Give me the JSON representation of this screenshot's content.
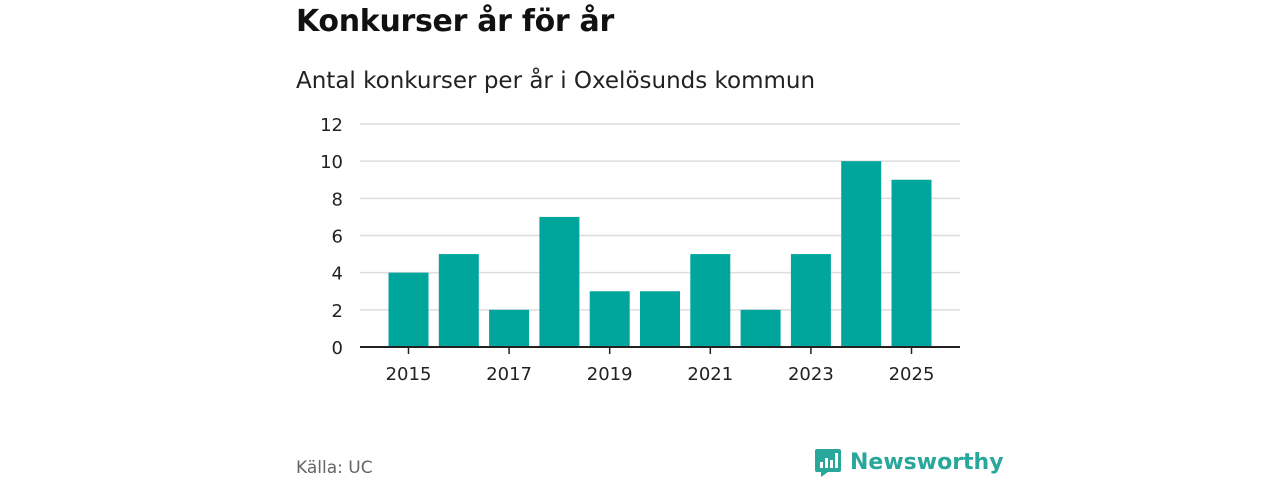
{
  "header": {
    "title": "Konkurser år för år",
    "subtitle": "Antal konkurser per år i Oxelösunds kommun"
  },
  "footer": {
    "source": "Källa: UC",
    "brand": "Newsworthy",
    "brand_icon": "newsworthy-logo-icon"
  },
  "colors": {
    "bar": "#00a69c",
    "brand": "#2aa79b",
    "grid": "#dddddd",
    "axis": "#222222"
  },
  "chart_data": {
    "type": "bar",
    "title": "Konkurser år för år",
    "subtitle": "Antal konkurser per år i Oxelösunds kommun",
    "xlabel": "",
    "ylabel": "",
    "categories": [
      "2015",
      "2016",
      "2017",
      "2018",
      "2019",
      "2020",
      "2021",
      "2022",
      "2023",
      "2024",
      "2025"
    ],
    "values": [
      4,
      5,
      2,
      7,
      3,
      3,
      5,
      2,
      5,
      10,
      9
    ],
    "x_tick_labels": [
      "2015",
      "2017",
      "2019",
      "2021",
      "2023",
      "2025"
    ],
    "y_ticks": [
      0,
      2,
      4,
      6,
      8,
      10,
      12
    ],
    "ylim": [
      0,
      12
    ],
    "grid": true,
    "legend": "none"
  }
}
